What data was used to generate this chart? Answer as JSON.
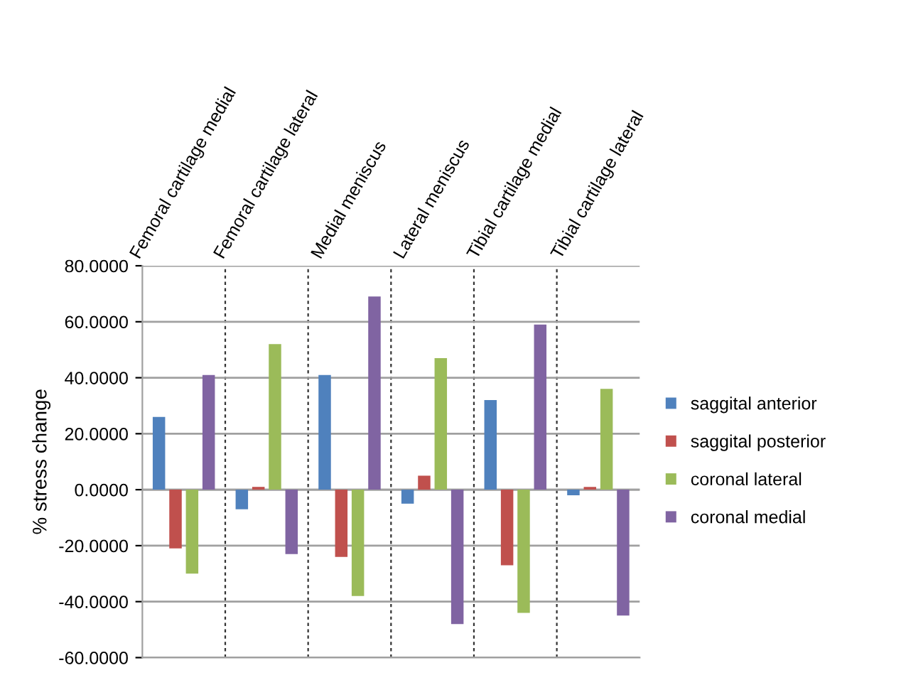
{
  "chart_data": {
    "type": "bar",
    "ylabel": "% stress change",
    "categories": [
      "Femoral cartilage medial",
      "Femoral cartilage lateral",
      "Medial meniscus",
      "Lateral meniscus",
      "Tibial cartilage medial",
      "Tibial cartilage lateral"
    ],
    "series": [
      {
        "name": "saggital anterior",
        "color": "#4f81bd",
        "values": [
          26,
          -7,
          41,
          -5,
          32,
          -2
        ]
      },
      {
        "name": "saggital posterior",
        "color": "#c0504d",
        "values": [
          -21,
          1,
          -24,
          5,
          -27,
          1
        ]
      },
      {
        "name": "coronal lateral",
        "color": "#9bbb59",
        "values": [
          -30,
          52,
          -38,
          47,
          -44,
          36
        ]
      },
      {
        "name": "coronal medial",
        "color": "#8064a2",
        "values": [
          41,
          -23,
          69,
          -48,
          59,
          -45
        ]
      }
    ],
    "ylim": [
      -60,
      80
    ],
    "yticks": [
      {
        "value": -60,
        "label": "-60.0000"
      },
      {
        "value": -40,
        "label": "-40.0000"
      },
      {
        "value": -20,
        "label": "-20.0000"
      },
      {
        "value": 0,
        "label": "0.0000"
      },
      {
        "value": 20,
        "label": "20.0000"
      },
      {
        "value": 40,
        "label": "40.0000"
      },
      {
        "value": 60,
        "label": "60.0000"
      },
      {
        "value": 80,
        "label": "80.0000"
      }
    ],
    "grid": true,
    "legend": "right"
  }
}
